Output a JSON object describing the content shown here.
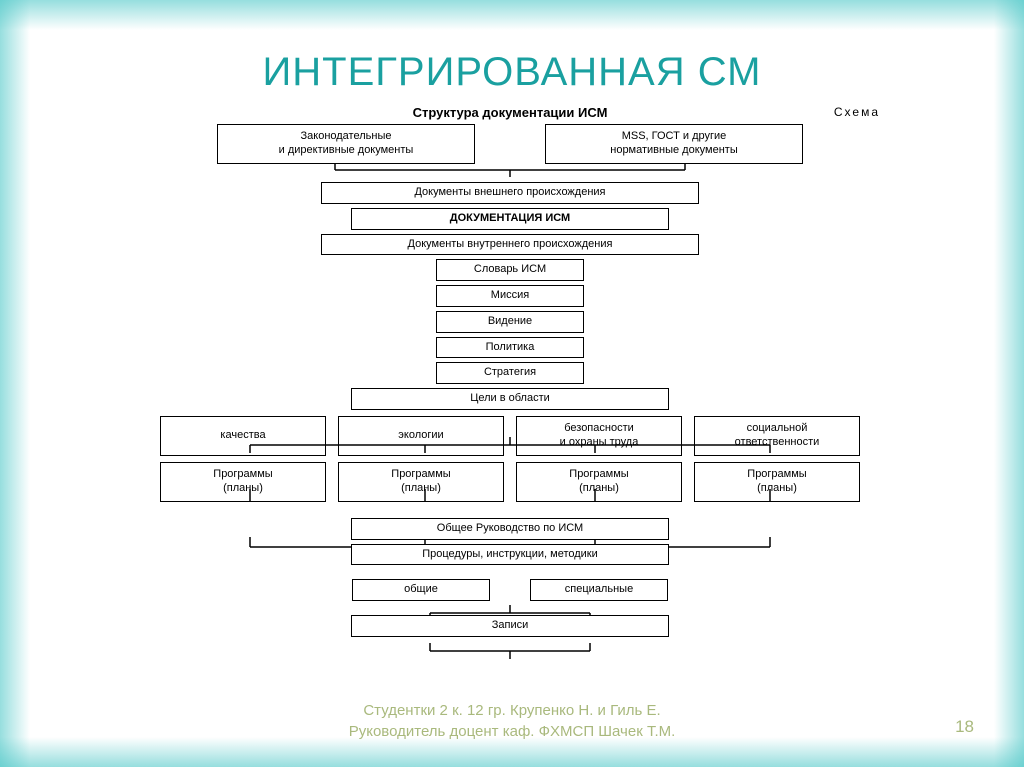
{
  "title": "ИНТЕГРИРОВАННАЯ СМ",
  "diagram": {
    "heading": "Структура документации ИСМ",
    "scheme_label": "Схема",
    "top_left": "Законодательные\nи директивные документы",
    "top_right": "MSS, ГОСТ и другие\nнормативные документы",
    "stack": [
      "Документы внешнего происхождения",
      "ДОКУМЕНТАЦИЯ ИСМ",
      "Документы внутреннего происхождения",
      "Словарь ИСМ",
      "Миссия",
      "Видение",
      "Политика",
      "Стратегия",
      "Цели в области"
    ],
    "bold_index": 1,
    "quad1": [
      "качества",
      "экологии",
      "безопасности\nи охраны труда",
      "социальной\nответственности"
    ],
    "quad2": [
      "Программы\n(планы)",
      "Программы\n(планы)",
      "Программы\n(планы)",
      "Программы\n(планы)"
    ],
    "stack2": [
      "Общее Руководство по ИСМ",
      "Процедуры, инструкции, методики"
    ],
    "pair": [
      "общие",
      "специальные"
    ],
    "last": "Записи"
  },
  "footer": {
    "line1": "Студентки 2 к. 12 гр. Крупенко Н. и Гиль Е.",
    "line2": "Руководитель доцент каф. ФХМСП Шачек Т.М."
  },
  "page_number": "18",
  "colors": {
    "title": "#1aa0a0",
    "footer": "#a9b97d",
    "border_glow": "#50c8c8",
    "box_border": "#000000",
    "background": "#ffffff"
  }
}
